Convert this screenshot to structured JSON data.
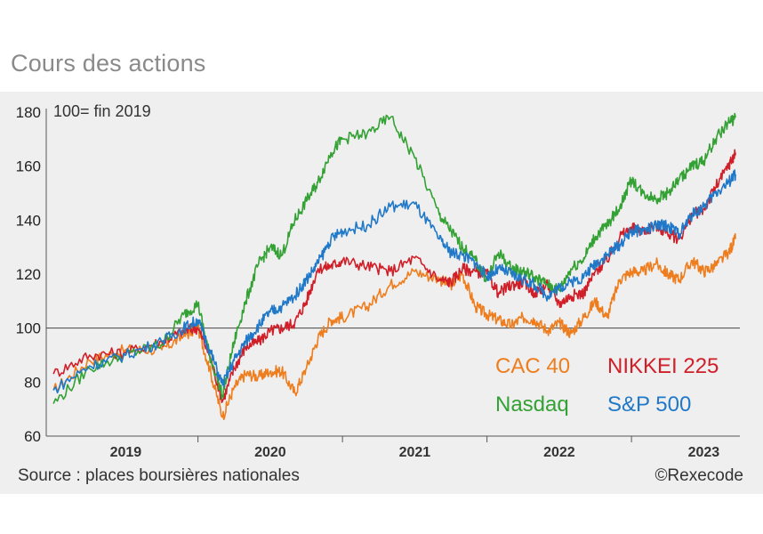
{
  "title": "Cours des actions",
  "note": "100= fin 2019",
  "source": "Source : places boursières nationales",
  "credit": "©Rexecode",
  "chart_data": {
    "type": "line",
    "title": "Cours des actions",
    "xlabel": "",
    "ylabel": "",
    "index_base": "100= fin 2019",
    "ylim": [
      60,
      180
    ],
    "yticks": [
      60,
      80,
      100,
      120,
      140,
      160,
      180
    ],
    "xlim": [
      2018.95,
      2023.75
    ],
    "x_tick_labels": [
      {
        "label": "2019",
        "x": 2019.5
      },
      {
        "label": "2020",
        "x": 2020.5
      },
      {
        "label": "2021",
        "x": 2021.5
      },
      {
        "label": "2022",
        "x": 2022.5
      },
      {
        "label": "2023",
        "x": 2023.5
      }
    ],
    "x_year_boundaries": [
      2020.0,
      2021.0,
      2022.0,
      2023.0
    ],
    "reference_line": 100,
    "series": [
      {
        "name": "CAC 40",
        "color": "#ee7d1e",
        "x": [
          2019.0,
          2019.25,
          2019.5,
          2019.75,
          2019.9,
          2020.0,
          2020.08,
          2020.17,
          2020.25,
          2020.33,
          2020.42,
          2020.5,
          2020.58,
          2020.67,
          2020.75,
          2020.83,
          2020.92,
          2021.0,
          2021.17,
          2021.33,
          2021.5,
          2021.67,
          2021.75,
          2021.83,
          2021.92,
          2022.0,
          2022.08,
          2022.17,
          2022.25,
          2022.33,
          2022.42,
          2022.5,
          2022.58,
          2022.67,
          2022.75,
          2022.83,
          2022.92,
          2023.0,
          2023.08,
          2023.17,
          2023.25,
          2023.33,
          2023.42,
          2023.5,
          2023.58,
          2023.67,
          2023.72
        ],
        "y": [
          77,
          88,
          92,
          92,
          97,
          100,
          85,
          67,
          78,
          83,
          82,
          84,
          84,
          76,
          85,
          96,
          103,
          104,
          108,
          116,
          121,
          118,
          116,
          120,
          108,
          105,
          103,
          101,
          104,
          103,
          99,
          102,
          98,
          104,
          110,
          104,
          118,
          121,
          121,
          124,
          120,
          118,
          125,
          121,
          123,
          128,
          133
        ]
      },
      {
        "name": "NIKKEI 225",
        "color": "#d01f28",
        "x": [
          2019.0,
          2019.25,
          2019.5,
          2019.75,
          2019.9,
          2020.0,
          2020.08,
          2020.17,
          2020.25,
          2020.33,
          2020.42,
          2020.5,
          2020.58,
          2020.67,
          2020.75,
          2020.83,
          2020.92,
          2021.0,
          2021.17,
          2021.33,
          2021.5,
          2021.67,
          2021.75,
          2021.83,
          2021.92,
          2022.0,
          2022.08,
          2022.17,
          2022.25,
          2022.33,
          2022.42,
          2022.5,
          2022.58,
          2022.67,
          2022.75,
          2022.83,
          2022.92,
          2023.0,
          2023.08,
          2023.17,
          2023.25,
          2023.33,
          2023.42,
          2023.5,
          2023.58,
          2023.67,
          2023.72
        ],
        "y": [
          83,
          90,
          91,
          95,
          99,
          100,
          90,
          73,
          85,
          93,
          95,
          99,
          100,
          102,
          110,
          122,
          123,
          125,
          123,
          121,
          126,
          118,
          117,
          122,
          121,
          120,
          113,
          116,
          117,
          113,
          116,
          109,
          112,
          113,
          121,
          125,
          134,
          137,
          136,
          138,
          135,
          133,
          142,
          144,
          152,
          160,
          165
        ]
      },
      {
        "name": "Nasdaq",
        "color": "#33a133",
        "x": [
          2019.0,
          2019.25,
          2019.5,
          2019.75,
          2019.9,
          2020.0,
          2020.08,
          2020.17,
          2020.25,
          2020.33,
          2020.42,
          2020.5,
          2020.58,
          2020.67,
          2020.75,
          2020.83,
          2020.92,
          2021.0,
          2021.17,
          2021.33,
          2021.5,
          2021.67,
          2021.75,
          2021.83,
          2021.92,
          2022.0,
          2022.08,
          2022.17,
          2022.25,
          2022.33,
          2022.42,
          2022.5,
          2022.58,
          2022.67,
          2022.75,
          2022.83,
          2022.92,
          2023.0,
          2023.08,
          2023.17,
          2023.25,
          2023.33,
          2023.42,
          2023.5,
          2023.58,
          2023.67,
          2023.72
        ],
        "y": [
          72,
          85,
          90,
          94,
          105,
          109,
          90,
          75,
          95,
          110,
          124,
          130,
          127,
          140,
          147,
          154,
          165,
          170,
          172,
          178,
          163,
          142,
          136,
          130,
          125,
          118,
          128,
          122,
          121,
          119,
          116,
          114,
          122,
          126,
          134,
          138,
          145,
          155,
          150,
          148,
          150,
          155,
          160,
          162,
          170,
          176,
          178
        ]
      },
      {
        "name": "S&P 500",
        "color": "#1f78c8",
        "x": [
          2019.0,
          2019.25,
          2019.5,
          2019.75,
          2019.9,
          2020.0,
          2020.08,
          2020.17,
          2020.25,
          2020.33,
          2020.42,
          2020.5,
          2020.58,
          2020.67,
          2020.75,
          2020.83,
          2020.92,
          2021.0,
          2021.17,
          2021.33,
          2021.5,
          2021.67,
          2021.75,
          2021.83,
          2021.92,
          2022.0,
          2022.08,
          2022.17,
          2022.25,
          2022.33,
          2022.42,
          2022.5,
          2022.58,
          2022.67,
          2022.75,
          2022.83,
          2022.92,
          2023.0,
          2023.08,
          2023.17,
          2023.25,
          2023.33,
          2023.42,
          2023.5,
          2023.58,
          2023.67,
          2023.72
        ],
        "y": [
          77,
          86,
          90,
          95,
          100,
          103,
          92,
          79,
          88,
          95,
          101,
          106,
          108,
          112,
          118,
          124,
          133,
          136,
          138,
          145,
          146,
          133,
          128,
          127,
          124,
          119,
          122,
          120,
          118,
          116,
          112,
          115,
          117,
          119,
          124,
          127,
          131,
          136,
          136,
          138,
          138,
          135,
          142,
          145,
          150,
          154,
          157
        ]
      }
    ],
    "legend": [
      {
        "label": "CAC 40",
        "color": "#ee7d1e"
      },
      {
        "label": "NIKKEI 225",
        "color": "#d01f28"
      },
      {
        "label": "Nasdaq",
        "color": "#33a133"
      },
      {
        "label": "S&P 500",
        "color": "#1f78c8"
      }
    ],
    "grid": false,
    "legend_position": "bottom-right"
  }
}
